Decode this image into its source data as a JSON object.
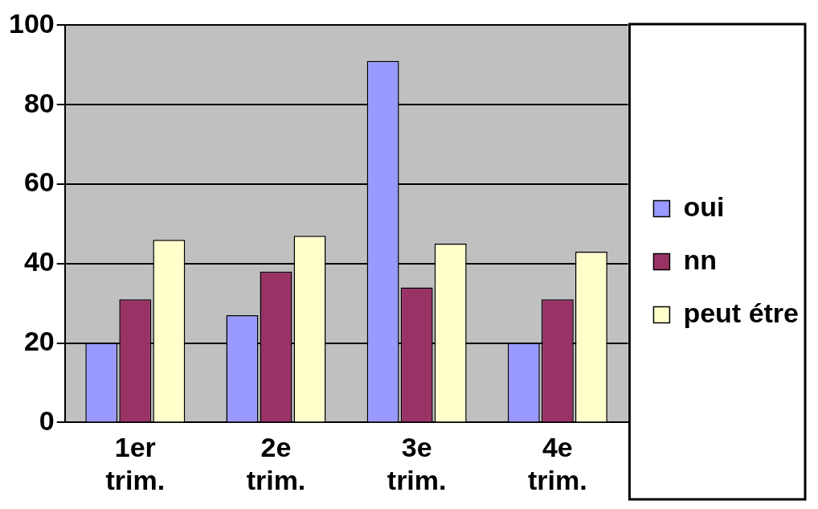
{
  "chart_data": {
    "type": "bar",
    "categories": [
      "1er trim.",
      "2e trim.",
      "3e trim.",
      "4e trim."
    ],
    "series": [
      {
        "name": "oui",
        "color": "#9999ff",
        "values": [
          20,
          27,
          91,
          20
        ]
      },
      {
        "name": "nn",
        "color": "#993366",
        "values": [
          31,
          38,
          34,
          31
        ]
      },
      {
        "name": "peut étre",
        "color": "#ffffcc",
        "values": [
          46,
          47,
          45,
          43
        ]
      }
    ],
    "ylim": [
      0,
      100
    ],
    "yticks": [
      0,
      20,
      40,
      60,
      80,
      100
    ],
    "grid": "y",
    "legend": "right"
  }
}
